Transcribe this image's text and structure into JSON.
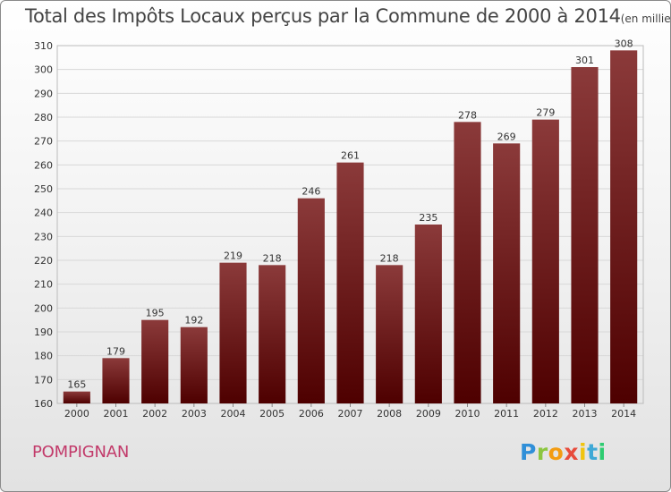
{
  "header": {
    "title": "Total des Impôts Locaux perçus par la Commune de 2000 à 2014",
    "unit": "(en milliers d'€)"
  },
  "footer": {
    "commune": "POMPIGNAN",
    "logo_text": "Proxiti"
  },
  "colors": {
    "bar_top": "#8b3a3a",
    "bar_bottom": "#4e0000",
    "grid": "#d8d8d8",
    "axis_text": "#333333"
  },
  "chart_data": {
    "type": "bar",
    "title": "Total des Impôts Locaux perçus par la Commune de 2000 à 2014",
    "subtitle": "(en milliers d'€)",
    "xlabel": "",
    "ylabel": "",
    "categories": [
      "2000",
      "2001",
      "2002",
      "2003",
      "2004",
      "2005",
      "2006",
      "2007",
      "2008",
      "2009",
      "2010",
      "2011",
      "2012",
      "2013",
      "2014"
    ],
    "values": [
      165,
      179,
      195,
      192,
      219,
      218,
      246,
      261,
      218,
      235,
      278,
      269,
      279,
      301,
      308
    ],
    "ylim": [
      160,
      310
    ],
    "yticks": [
      160,
      170,
      180,
      190,
      200,
      210,
      220,
      230,
      240,
      250,
      260,
      270,
      280,
      290,
      300,
      310
    ],
    "grid": true,
    "legend": "none",
    "data_labels": true
  }
}
